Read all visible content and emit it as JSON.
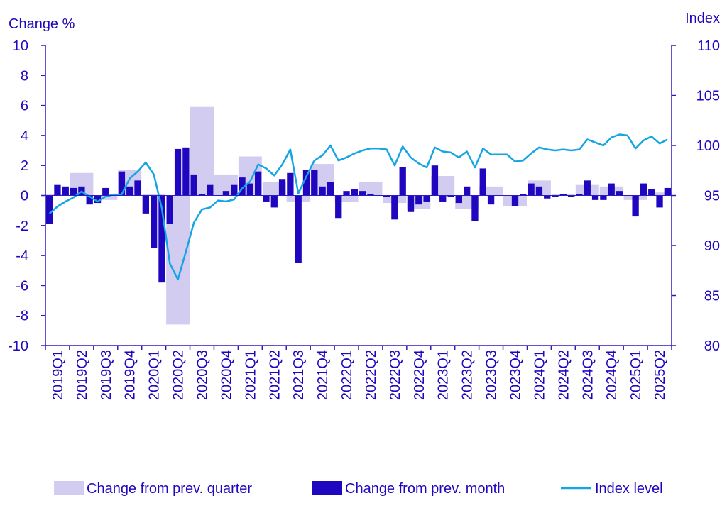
{
  "chart_data": {
    "type": "bar+line",
    "left_axis": {
      "label": "Change %",
      "range": [
        -10,
        10
      ],
      "ticks": [
        10,
        8,
        6,
        4,
        2,
        0,
        -2,
        -4,
        -6,
        -8,
        -10
      ]
    },
    "right_axis": {
      "label": "Index",
      "range": [
        80,
        110
      ],
      "ticks": [
        110,
        105,
        100,
        95,
        90,
        85,
        80
      ]
    },
    "quarters": [
      "2019Q1",
      "2019Q2",
      "2019Q3",
      "2019Q4",
      "2020Q1",
      "2020Q2",
      "2020Q3",
      "2020Q4",
      "2021Q1",
      "2021Q2",
      "2021Q3",
      "2021Q4",
      "2022Q1",
      "2022Q2",
      "2022Q3",
      "2022Q4",
      "2023Q1",
      "2023Q2",
      "2023Q3",
      "2023Q4",
      "2024Q1",
      "2024Q2",
      "2024Q3",
      "2024Q4",
      "2025Q1",
      "2025Q2"
    ],
    "series": [
      {
        "name": "Change from prev. quarter",
        "kind": "bar",
        "axis": "left",
        "values": [
          0.1,
          1.5,
          -0.3,
          1.7,
          0.1,
          -8.6,
          5.9,
          1.4,
          2.6,
          0.9,
          -0.4,
          2.1,
          -0.4,
          0.9,
          -0.5,
          -0.9,
          1.3,
          -0.9,
          0.6,
          -0.7,
          1.0,
          0.1,
          0.7,
          0.6,
          -0.3,
          0.2
        ]
      },
      {
        "name": "Change from prev. month",
        "kind": "bar",
        "axis": "left",
        "values": [
          -1.9,
          0.7,
          0.6,
          0.5,
          0.6,
          -0.6,
          -0.5,
          0.5,
          0.1,
          1.6,
          0.6,
          1.0,
          -1.2,
          -3.5,
          -5.8,
          -1.9,
          3.1,
          3.2,
          1.4,
          0.1,
          0.7,
          0.0,
          0.3,
          0.7,
          1.2,
          0.8,
          1.6,
          -0.4,
          -0.8,
          1.1,
          1.5,
          -4.5,
          1.7,
          1.7,
          0.6,
          0.9,
          -1.5,
          0.3,
          0.4,
          0.3,
          0.1,
          0.0,
          -0.1,
          -1.6,
          1.9,
          -1.1,
          -0.6,
          -0.4,
          2.0,
          -0.4,
          -0.1,
          -0.5,
          0.6,
          -1.7,
          1.8,
          -0.6,
          0.0,
          0.0,
          -0.7,
          0.1,
          0.8,
          0.6,
          -0.2,
          -0.1,
          0.1,
          -0.1,
          0.1,
          1.0,
          -0.3,
          -0.3,
          0.8,
          0.3,
          0.0,
          -1.4,
          0.8,
          0.4,
          -0.8,
          0.5
        ]
      },
      {
        "name": "Index level",
        "kind": "line",
        "axis": "right",
        "values": [
          93.2,
          93.9,
          94.4,
          94.8,
          95.4,
          94.9,
          94.4,
          94.9,
          95.1,
          95.1,
          96.7,
          97.4,
          98.3,
          97.1,
          93.7,
          88.2,
          86.6,
          89.4,
          92.3,
          93.6,
          93.8,
          94.5,
          94.4,
          94.6,
          95.7,
          96.4,
          98.1,
          97.7,
          97.0,
          98.1,
          99.6,
          95.2,
          96.9,
          98.5,
          99.0,
          100.0,
          98.5,
          98.8,
          99.2,
          99.5,
          99.7,
          99.7,
          99.6,
          98.0,
          99.9,
          98.8,
          98.2,
          97.8,
          99.8,
          99.4,
          99.3,
          98.8,
          99.4,
          97.8,
          99.7,
          99.1,
          99.1,
          99.1,
          98.4,
          98.5,
          99.2,
          99.8,
          99.6,
          99.5,
          99.6,
          99.5,
          99.6,
          100.6,
          100.3,
          100.0,
          100.8,
          101.1,
          101.0,
          99.7,
          100.5,
          100.9,
          100.2,
          100.6
        ]
      }
    ],
    "legend_position": "bottom",
    "grid": false,
    "colors": {
      "quarter": "#d1ccf0",
      "month": "#1f06bf",
      "line": "#15a5e3",
      "axis": "#2b1bc4",
      "text": "#1f06bf"
    }
  }
}
